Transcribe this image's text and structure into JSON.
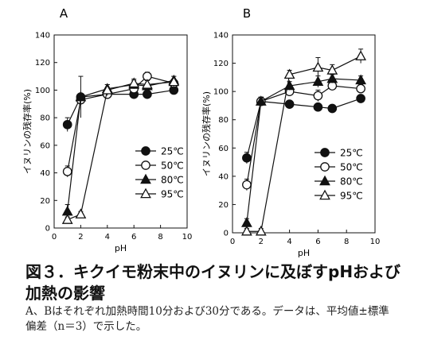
{
  "figure": {
    "title": "図３．キクイモ粉末中のイヌリンに及ぼすpHおよび加熱の影響",
    "note": "A、Bはそれぞれ加熱時間10分および30分である。データは、平均値±標準偏差（n＝3）で示した。"
  },
  "chart_data": [
    {
      "type": "line",
      "panel_label": "A",
      "xlabel": "pH",
      "ylabel": "イヌリンの残存率(%)",
      "xlim": [
        0,
        10
      ],
      "ylim": [
        0,
        140
      ],
      "xticks": [
        "0",
        "2",
        "4",
        "6",
        "8",
        "10"
      ],
      "yticks": [
        "0",
        "20",
        "40",
        "60",
        "80",
        "100",
        "120",
        "140"
      ],
      "grid": false,
      "legend_position": "lower-right",
      "x": [
        1,
        2,
        4,
        6,
        7,
        9
      ],
      "series": [
        {
          "name": "25℃",
          "marker": "filled-circle",
          "values": [
            75,
            95,
            97,
            97,
            97,
            100
          ],
          "err": [
            5,
            2,
            2,
            2,
            2,
            2
          ]
        },
        {
          "name": "50℃",
          "marker": "open-circle",
          "values": [
            41,
            93,
            97,
            101,
            110,
            105
          ],
          "err": [
            4,
            3,
            3,
            3,
            3,
            3
          ]
        },
        {
          "name": "80℃",
          "marker": "filled-triangle",
          "values": [
            12,
            95,
            101,
            104,
            103,
            107
          ],
          "err": [
            5,
            15,
            3,
            3,
            4,
            3
          ]
        },
        {
          "name": "95℃",
          "marker": "open-triangle",
          "values": [
            6,
            10,
            100,
            105,
            104,
            106
          ],
          "err": [
            2,
            2,
            4,
            3,
            3,
            4
          ]
        }
      ]
    },
    {
      "type": "line",
      "panel_label": "B",
      "xlabel": "pH",
      "ylabel": "イヌリンの残存率(%)",
      "xlim": [
        0,
        10
      ],
      "ylim": [
        0,
        140
      ],
      "xticks": [
        "0",
        "2",
        "4",
        "6",
        "8",
        "10"
      ],
      "yticks": [
        "0",
        "20",
        "40",
        "60",
        "80",
        "100",
        "120",
        "140"
      ],
      "grid": false,
      "legend_position": "lower-right",
      "x": [
        1,
        2,
        4,
        6,
        7,
        9
      ],
      "series": [
        {
          "name": "25℃",
          "marker": "filled-circle",
          "values": [
            53,
            93,
            91,
            89,
            88,
            95
          ],
          "err": [
            4,
            3,
            2,
            2,
            2,
            2
          ]
        },
        {
          "name": "50℃",
          "marker": "open-circle",
          "values": [
            34,
            93,
            100,
            97,
            104,
            102
          ],
          "err": [
            4,
            3,
            3,
            4,
            3,
            3
          ]
        },
        {
          "name": "80℃",
          "marker": "filled-triangle",
          "values": [
            7,
            93,
            104,
            107,
            109,
            108
          ],
          "err": [
            3,
            3,
            3,
            4,
            3,
            3
          ]
        },
        {
          "name": "95℃",
          "marker": "open-triangle",
          "values": [
            1,
            1,
            112,
            117,
            115,
            125
          ],
          "err": [
            2,
            2,
            3,
            7,
            4,
            5
          ]
        }
      ]
    }
  ]
}
